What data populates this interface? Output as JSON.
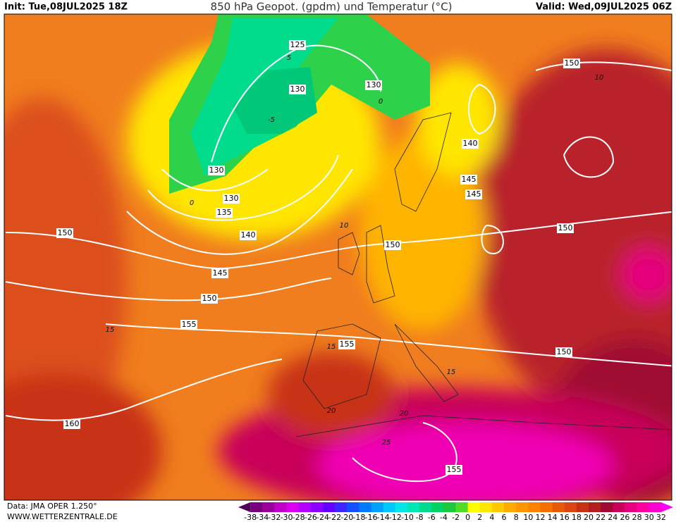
{
  "header": {
    "init": "Init: Tue,08JUL2025 18Z",
    "title": "850 hPa Geopot. (gpdm) und Temperatur (°C)",
    "valid": "Valid: Wed,09JUL2025 06Z"
  },
  "footer": {
    "data": "Data: JMA OPER 1.250°",
    "site": "WWW.WETTERZENTRALE.DE"
  },
  "legend": {
    "labels": [
      -38,
      -34,
      -32,
      -30,
      -28,
      -26,
      -24,
      -22,
      -20,
      -18,
      -16,
      -14,
      -12,
      -10,
      -8,
      -6,
      -4,
      -2,
      0,
      2,
      4,
      6,
      8,
      10,
      12,
      14,
      16,
      18,
      20,
      22,
      24,
      26,
      28,
      30,
      32
    ],
    "colors": [
      "#50005a",
      "#78007d",
      "#9b009b",
      "#be00c8",
      "#dc00f0",
      "#b400ff",
      "#8c00ff",
      "#6400ff",
      "#3c28ff",
      "#1450ff",
      "#0078ff",
      "#00a0ff",
      "#00c8ff",
      "#00e6e6",
      "#00e6b4",
      "#00dc8c",
      "#00d264",
      "#1ec83c",
      "#50dc28",
      "#ffff00",
      "#ffe600",
      "#ffc800",
      "#ffaa00",
      "#ff9600",
      "#ff8200",
      "#f56e00",
      "#e65a0a",
      "#dc4614",
      "#c83214",
      "#b41e1e",
      "#a00a32",
      "#c8005a",
      "#e6007d",
      "#ff00a0",
      "#ff00d2",
      "#ff00f5"
    ]
  },
  "contour_labels": {
    "geopotential": [
      125,
      130,
      130,
      130,
      130,
      135,
      140,
      145,
      150,
      155,
      160,
      150,
      150,
      155,
      150,
      140,
      145,
      145,
      150,
      150,
      155
    ],
    "temperature": [
      5,
      0,
      -5,
      0,
      10,
      15,
      15,
      20,
      20,
      25,
      15,
      10
    ]
  }
}
